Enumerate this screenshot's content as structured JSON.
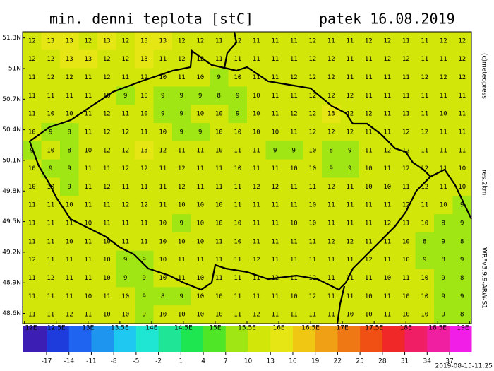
{
  "header": {
    "title": "min. denni teplota [stC]",
    "date": "patek 16.08.2019"
  },
  "side_labels": {
    "copyright": "(c)meteopress",
    "resolution": "res.2km",
    "model": "WRFv3.9.9-ARW-S1",
    "issued": "2019-08-15-11:25"
  },
  "map": {
    "lat_range": [
      48.5,
      51.36
    ],
    "lon_range": [
      11.97,
      19.03
    ],
    "lat_ticks": [
      {
        "value": 51.3,
        "label": "51.3N"
      },
      {
        "value": 51,
        "label": "51N"
      },
      {
        "value": 50.7,
        "label": "50.7N"
      },
      {
        "value": 50.4,
        "label": "50.4N"
      },
      {
        "value": 50.1,
        "label": "50.1N"
      },
      {
        "value": 49.8,
        "label": "49.8N"
      },
      {
        "value": 49.5,
        "label": "49.5N"
      },
      {
        "value": 49.2,
        "label": "49.2N"
      },
      {
        "value": 48.9,
        "label": "48.9N"
      },
      {
        "value": 48.6,
        "label": "48.6N"
      }
    ],
    "lon_ticks": [
      {
        "value": 12,
        "label": "12E"
      },
      {
        "value": 12.5,
        "label": "12.5E"
      },
      {
        "value": 13,
        "label": "13E"
      },
      {
        "value": 13.5,
        "label": "13.5E"
      },
      {
        "value": 14,
        "label": "14E"
      },
      {
        "value": 14.5,
        "label": "14.5E"
      },
      {
        "value": 15,
        "label": "15E"
      },
      {
        "value": 15.5,
        "label": "15.5E"
      },
      {
        "value": 16,
        "label": "16E"
      },
      {
        "value": 16.5,
        "label": "16.5E"
      },
      {
        "value": 17,
        "label": "17E"
      },
      {
        "value": 17.5,
        "label": "17.5E"
      },
      {
        "value": 18,
        "label": "18E"
      },
      {
        "value": 18.5,
        "label": "18.5E"
      },
      {
        "value": 19,
        "label": "19E"
      }
    ],
    "grid_values": [
      [
        12,
        13,
        13,
        12,
        13,
        12,
        13,
        13,
        12,
        12,
        11,
        12,
        11,
        11,
        11,
        12,
        11,
        11,
        12,
        12,
        11,
        11,
        12,
        12
      ],
      [
        12,
        12,
        13,
        13,
        12,
        12,
        13,
        11,
        12,
        12,
        11,
        11,
        11,
        11,
        11,
        12,
        12,
        11,
        11,
        12,
        12,
        11,
        11,
        12
      ],
      [
        11,
        12,
        12,
        11,
        12,
        11,
        12,
        10,
        11,
        10,
        9,
        10,
        11,
        11,
        12,
        12,
        12,
        11,
        11,
        11,
        11,
        12,
        12,
        12
      ],
      [
        11,
        11,
        11,
        11,
        10,
        9,
        10,
        9,
        9,
        9,
        8,
        9,
        10,
        11,
        11,
        12,
        12,
        12,
        11,
        11,
        11,
        11,
        11,
        11
      ],
      [
        11,
        10,
        10,
        11,
        12,
        11,
        10,
        9,
        9,
        10,
        10,
        9,
        10,
        11,
        12,
        12,
        13,
        12,
        12,
        11,
        11,
        11,
        10,
        11
      ],
      [
        10,
        9,
        8,
        11,
        12,
        12,
        11,
        10,
        9,
        9,
        10,
        10,
        10,
        10,
        11,
        12,
        12,
        12,
        11,
        11,
        12,
        12,
        11,
        11
      ],
      [
        9,
        10,
        8,
        10,
        12,
        12,
        13,
        12,
        11,
        11,
        10,
        11,
        11,
        9,
        9,
        10,
        8,
        9,
        11,
        12,
        12,
        11,
        11,
        11
      ],
      [
        10,
        9,
        9,
        11,
        11,
        12,
        12,
        11,
        12,
        11,
        11,
        10,
        11,
        11,
        10,
        10,
        9,
        9,
        10,
        11,
        12,
        12,
        11,
        10
      ],
      [
        10,
        10,
        9,
        11,
        12,
        11,
        11,
        11,
        12,
        11,
        11,
        11,
        12,
        12,
        11,
        11,
        12,
        11,
        10,
        10,
        11,
        12,
        11,
        10
      ],
      [
        11,
        11,
        10,
        11,
        11,
        12,
        12,
        11,
        10,
        10,
        10,
        11,
        11,
        11,
        11,
        10,
        11,
        11,
        11,
        11,
        12,
        11,
        10,
        9
      ],
      [
        11,
        11,
        11,
        10,
        11,
        11,
        11,
        10,
        9,
        10,
        10,
        10,
        11,
        11,
        10,
        10,
        11,
        11,
        11,
        12,
        11,
        10,
        8,
        9
      ],
      [
        11,
        11,
        10,
        11,
        10,
        11,
        11,
        10,
        10,
        10,
        11,
        10,
        11,
        11,
        11,
        11,
        12,
        12,
        11,
        11,
        10,
        8,
        9,
        8
      ],
      [
        12,
        11,
        11,
        11,
        10,
        9,
        9,
        10,
        11,
        11,
        11,
        11,
        12,
        11,
        11,
        11,
        11,
        11,
        12,
        11,
        10,
        9,
        8,
        9
      ],
      [
        11,
        12,
        11,
        11,
        10,
        9,
        9,
        10,
        11,
        10,
        11,
        11,
        11,
        12,
        11,
        12,
        11,
        11,
        11,
        10,
        11,
        10,
        9,
        8
      ],
      [
        11,
        11,
        11,
        10,
        11,
        10,
        9,
        8,
        9,
        10,
        10,
        11,
        11,
        11,
        10,
        12,
        11,
        11,
        10,
        11,
        10,
        10,
        9,
        9
      ],
      [
        11,
        11,
        12,
        11,
        10,
        10,
        9,
        10,
        10,
        10,
        10,
        11,
        12,
        11,
        11,
        11,
        11,
        10,
        10,
        11,
        10,
        10,
        9,
        8
      ]
    ]
  },
  "colorbar": {
    "ticks": [
      -17,
      -14,
      -11,
      -8,
      -5,
      -2,
      1,
      4,
      7,
      10,
      13,
      16,
      19,
      22,
      25,
      28,
      31,
      34,
      37
    ],
    "colors": [
      "#3c1eb4",
      "#1e3cdc",
      "#1e64f0",
      "#1e96f0",
      "#1ec8f0",
      "#1ee6d2",
      "#1ee696",
      "#1ee650",
      "#50e628",
      "#a0e614",
      "#d2e60a",
      "#e6e614",
      "#f0c814",
      "#f0a014",
      "#f07814",
      "#f05014",
      "#f02828",
      "#f01e64",
      "#f01ea0",
      "#f01ee6"
    ]
  }
}
